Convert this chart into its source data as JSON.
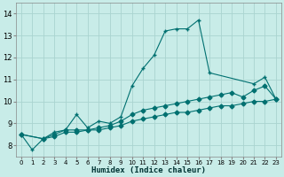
{
  "xlabel": "Humidex (Indice chaleur)",
  "bg_color": "#c8ece8",
  "plot_bg_color": "#c8ece8",
  "grid_color": "#aad4d0",
  "line_color": "#007070",
  "xlim": [
    -0.5,
    23.5
  ],
  "ylim": [
    7.5,
    14.5
  ],
  "xticks": [
    0,
    1,
    2,
    3,
    4,
    5,
    6,
    7,
    8,
    9,
    10,
    11,
    12,
    13,
    14,
    15,
    16,
    17,
    18,
    19,
    20,
    21,
    22,
    23
  ],
  "yticks": [
    8,
    9,
    10,
    11,
    12,
    13,
    14
  ],
  "series1_x": [
    0,
    1,
    2,
    3,
    4,
    5,
    6,
    7,
    8,
    9,
    10,
    11,
    12,
    13,
    14,
    15,
    16,
    17,
    21,
    22,
    23
  ],
  "series1_y": [
    8.5,
    7.8,
    8.3,
    8.6,
    8.7,
    9.4,
    8.8,
    9.1,
    9.0,
    9.3,
    10.7,
    11.5,
    12.1,
    13.2,
    13.3,
    13.3,
    13.7,
    11.3,
    10.8,
    11.1,
    10.1
  ],
  "series2_x": [
    0,
    2,
    3,
    4,
    5,
    6,
    7,
    8,
    9,
    10,
    11,
    12,
    13,
    14,
    15,
    16,
    17,
    18,
    19,
    20,
    21,
    22,
    23
  ],
  "series2_y": [
    8.5,
    8.3,
    8.5,
    8.7,
    8.7,
    8.7,
    8.8,
    8.9,
    9.1,
    9.4,
    9.6,
    9.7,
    9.8,
    9.9,
    10.0,
    10.1,
    10.2,
    10.3,
    10.4,
    10.2,
    10.5,
    10.7,
    10.1
  ],
  "series3_x": [
    0,
    2,
    3,
    4,
    5,
    6,
    7,
    8,
    9,
    10,
    11,
    12,
    13,
    14,
    15,
    16,
    17,
    18,
    19,
    20,
    21,
    22,
    23
  ],
  "series3_y": [
    8.5,
    8.3,
    8.4,
    8.6,
    8.6,
    8.7,
    8.7,
    8.8,
    8.9,
    9.1,
    9.2,
    9.3,
    9.4,
    9.5,
    9.5,
    9.6,
    9.7,
    9.8,
    9.8,
    9.9,
    10.0,
    10.0,
    10.1
  ]
}
